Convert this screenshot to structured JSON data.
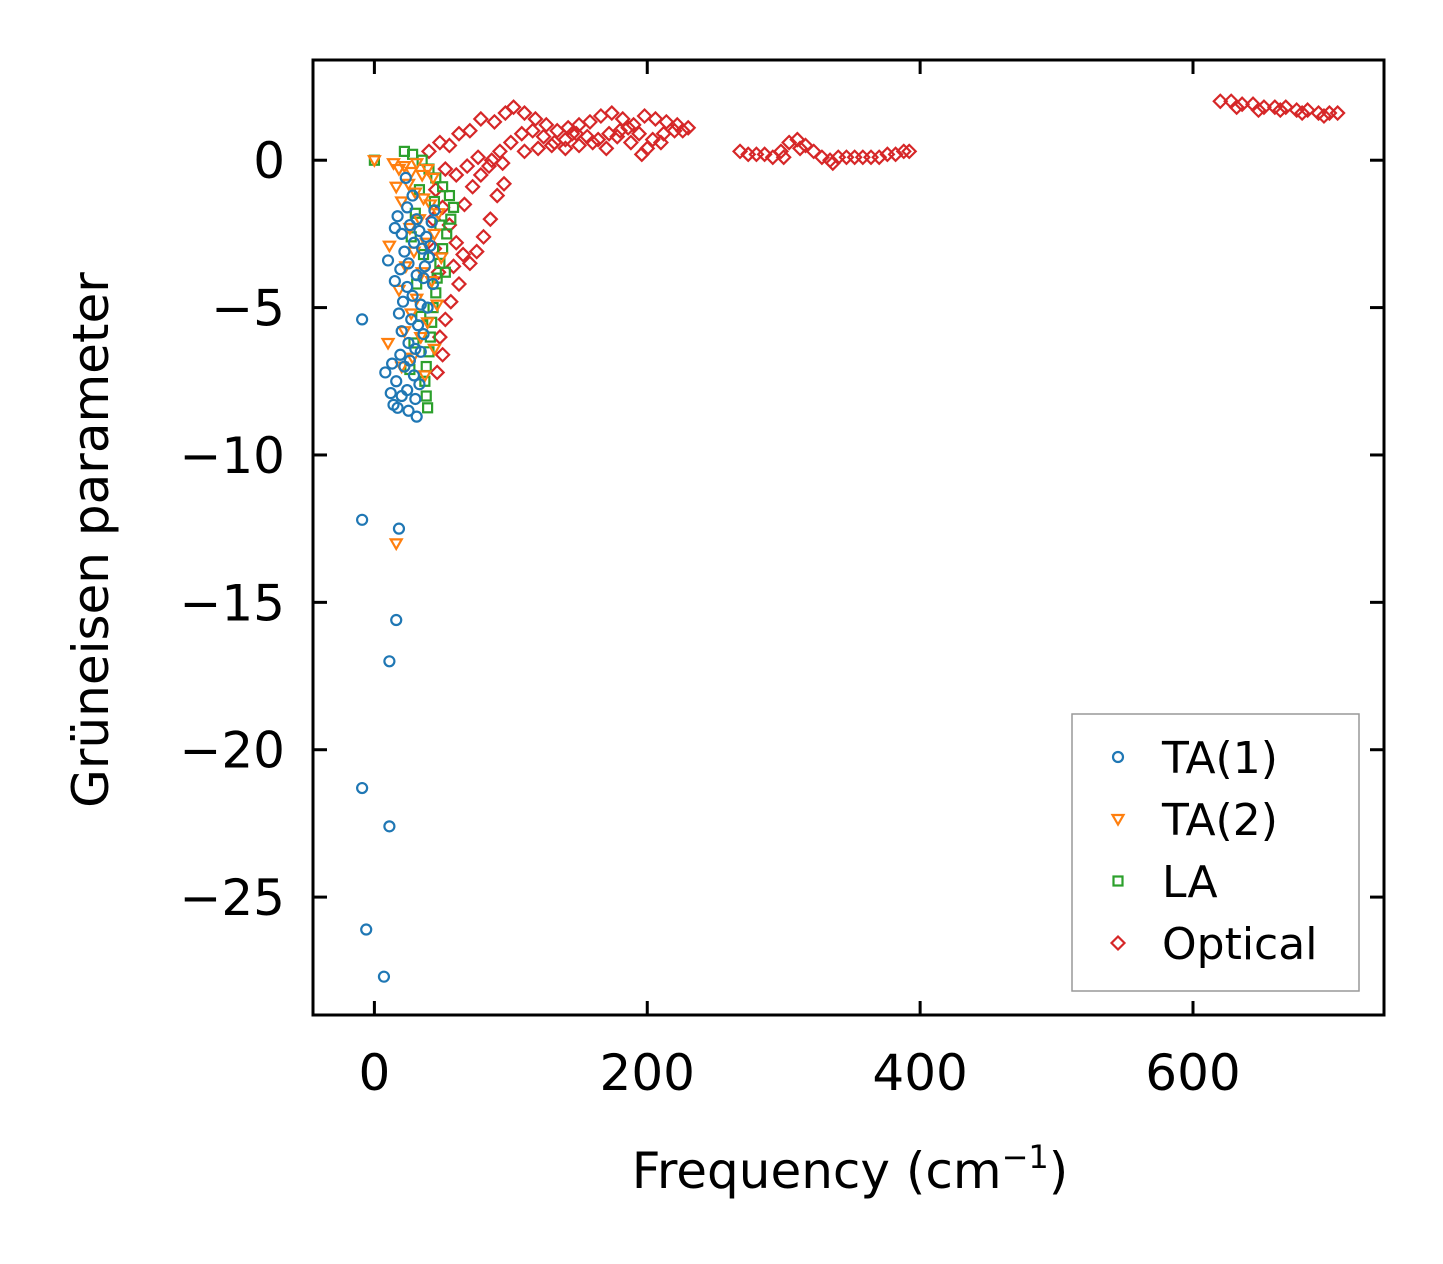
{
  "chart_data": {
    "type": "scatter",
    "title": "",
    "xlabel": "Frequency (cm",
    "xlabel_sup": "−1",
    "xlabel_end": ")",
    "ylabel": "Grüneisen parameter",
    "xlim": [
      -45,
      740
    ],
    "ylim": [
      -29.0,
      3.4
    ],
    "xticks": [
      0,
      200,
      400,
      600
    ],
    "xtick_labels": [
      "0",
      "200",
      "400",
      "600"
    ],
    "yticks": [
      0,
      -5,
      -10,
      -15,
      -20,
      -25
    ],
    "ytick_labels": [
      "0",
      "−5",
      "−10",
      "−15",
      "−20",
      "−25"
    ],
    "legend_position": "lower-right",
    "series": [
      {
        "name": "TA(1)",
        "marker": "circle",
        "color": "#1f77b4",
        "points": [
          [
            -9,
            -5.4
          ],
          [
            -9,
            -12.2
          ],
          [
            18,
            -12.5
          ],
          [
            16,
            -15.6
          ],
          [
            11,
            -17.0
          ],
          [
            -9,
            -21.3
          ],
          [
            11,
            -22.6
          ],
          [
            -6,
            -26.1
          ],
          [
            7,
            -27.7
          ],
          [
            23,
            -0.6
          ],
          [
            28,
            -1.2
          ],
          [
            24,
            -1.6
          ],
          [
            17,
            -1.9
          ],
          [
            31,
            -2.0
          ],
          [
            15,
            -2.3
          ],
          [
            20,
            -2.5
          ],
          [
            26,
            -2.2
          ],
          [
            33,
            -2.4
          ],
          [
            38,
            -2.6
          ],
          [
            42,
            -2.1
          ],
          [
            29,
            -2.8
          ],
          [
            35,
            -3.0
          ],
          [
            22,
            -3.1
          ],
          [
            40,
            -3.3
          ],
          [
            25,
            -3.5
          ],
          [
            10,
            -3.4
          ],
          [
            19,
            -3.7
          ],
          [
            31,
            -3.9
          ],
          [
            36,
            -4.0
          ],
          [
            15,
            -4.1
          ],
          [
            24,
            -4.3
          ],
          [
            43,
            -4.2
          ],
          [
            28,
            -4.6
          ],
          [
            21,
            -4.8
          ],
          [
            34,
            -4.9
          ],
          [
            39,
            -5.0
          ],
          [
            18,
            -5.2
          ],
          [
            27,
            -5.4
          ],
          [
            32,
            -5.6
          ],
          [
            20,
            -5.8
          ],
          [
            36,
            -5.9
          ],
          [
            25,
            -6.2
          ],
          [
            30,
            -6.4
          ],
          [
            19,
            -6.6
          ],
          [
            34,
            -6.5
          ],
          [
            26,
            -6.8
          ],
          [
            13,
            -6.9
          ],
          [
            8,
            -7.2
          ],
          [
            22,
            -7.0
          ],
          [
            29,
            -7.3
          ],
          [
            16,
            -7.5
          ],
          [
            33,
            -7.6
          ],
          [
            24,
            -7.8
          ],
          [
            12,
            -7.9
          ],
          [
            20,
            -8.0
          ],
          [
            30,
            -8.1
          ],
          [
            14,
            -8.3
          ],
          [
            17,
            -8.4
          ],
          [
            25,
            -8.5
          ],
          [
            31,
            -8.7
          ],
          [
            37,
            -3.6
          ],
          [
            41,
            -2.9
          ],
          [
            44,
            -1.7
          ]
        ]
      },
      {
        "name": "TA(2)",
        "marker": "triangle-down",
        "color": "#ff7f0e",
        "points": [
          [
            0,
            0.0
          ],
          [
            14,
            -0.1
          ],
          [
            18,
            -0.3
          ],
          [
            22,
            -0.2
          ],
          [
            27,
            -0.4
          ],
          [
            31,
            -0.1
          ],
          [
            35,
            -0.5
          ],
          [
            39,
            -0.3
          ],
          [
            43,
            -0.6
          ],
          [
            25,
            -0.8
          ],
          [
            16,
            -0.9
          ],
          [
            30,
            -1.1
          ],
          [
            36,
            -1.3
          ],
          [
            41,
            -1.5
          ],
          [
            20,
            -1.4
          ],
          [
            47,
            -1.8
          ],
          [
            33,
            -2.0
          ],
          [
            26,
            -2.3
          ],
          [
            44,
            -2.5
          ],
          [
            38,
            -2.8
          ],
          [
            11,
            -2.9
          ],
          [
            29,
            -3.1
          ],
          [
            49,
            -3.3
          ],
          [
            23,
            -3.6
          ],
          [
            35,
            -3.8
          ],
          [
            42,
            -4.1
          ],
          [
            18,
            -4.4
          ],
          [
            31,
            -4.7
          ],
          [
            46,
            -4.9
          ],
          [
            27,
            -5.2
          ],
          [
            39,
            -5.5
          ],
          [
            22,
            -5.8
          ],
          [
            34,
            -6.0
          ],
          [
            10,
            -6.2
          ],
          [
            44,
            -6.4
          ],
          [
            28,
            -6.7
          ],
          [
            20,
            -7.0
          ],
          [
            37,
            -7.3
          ],
          [
            16,
            -13.0
          ]
        ]
      },
      {
        "name": "LA",
        "marker": "square",
        "color": "#2ca02c",
        "points": [
          [
            0,
            0.0
          ],
          [
            22,
            0.3
          ],
          [
            28,
            0.2
          ],
          [
            35,
            0.0
          ],
          [
            40,
            -0.3
          ],
          [
            45,
            -0.6
          ],
          [
            50,
            -0.9
          ],
          [
            55,
            -1.2
          ],
          [
            58,
            -1.6
          ],
          [
            56,
            -2.0
          ],
          [
            53,
            -2.5
          ],
          [
            50,
            -3.0
          ],
          [
            48,
            -3.5
          ],
          [
            46,
            -4.0
          ],
          [
            45,
            -4.5
          ],
          [
            43,
            -5.0
          ],
          [
            42,
            -5.5
          ],
          [
            41,
            -6.0
          ],
          [
            40,
            -6.5
          ],
          [
            38,
            -7.0
          ],
          [
            37,
            -7.5
          ],
          [
            38,
            -8.0
          ],
          [
            39,
            -8.4
          ],
          [
            33,
            -1.0
          ],
          [
            30,
            -1.8
          ],
          [
            27,
            -2.6
          ],
          [
            36,
            -3.2
          ],
          [
            31,
            -4.2
          ],
          [
            34,
            -5.3
          ],
          [
            29,
            -6.2
          ],
          [
            26,
            -7.1
          ],
          [
            48,
            -2.2
          ],
          [
            52,
            -3.8
          ],
          [
            44,
            -1.4
          ]
        ]
      },
      {
        "name": "Optical",
        "marker": "diamond",
        "color": "#d62728",
        "points": [
          [
            40,
            0.3
          ],
          [
            48,
            0.6
          ],
          [
            55,
            0.5
          ],
          [
            62,
            0.9
          ],
          [
            70,
            1.0
          ],
          [
            78,
            1.4
          ],
          [
            88,
            1.3
          ],
          [
            96,
            1.6
          ],
          [
            102,
            1.8
          ],
          [
            110,
            1.6
          ],
          [
            118,
            1.4
          ],
          [
            126,
            1.2
          ],
          [
            134,
            1.0
          ],
          [
            142,
            1.1
          ],
          [
            150,
            1.2
          ],
          [
            158,
            1.3
          ],
          [
            166,
            1.5
          ],
          [
            174,
            1.6
          ],
          [
            182,
            1.4
          ],
          [
            190,
            1.2
          ],
          [
            198,
            1.5
          ],
          [
            206,
            1.4
          ],
          [
            214,
            1.3
          ],
          [
            222,
            1.2
          ],
          [
            230,
            1.1
          ],
          [
            52,
            -0.3
          ],
          [
            60,
            -0.5
          ],
          [
            68,
            -0.2
          ],
          [
            76,
            0.1
          ],
          [
            84,
            -0.2
          ],
          [
            92,
            0.3
          ],
          [
            100,
            0.6
          ],
          [
            108,
            0.9
          ],
          [
            116,
            1.0
          ],
          [
            124,
            0.8
          ],
          [
            132,
            0.6
          ],
          [
            140,
            0.7
          ],
          [
            148,
            0.9
          ],
          [
            156,
            0.8
          ],
          [
            164,
            0.7
          ],
          [
            172,
            0.9
          ],
          [
            180,
            1.0
          ],
          [
            188,
            0.6
          ],
          [
            196,
            0.2
          ],
          [
            204,
            0.7
          ],
          [
            212,
            0.9
          ],
          [
            220,
            1.0
          ],
          [
            45,
            -1.0
          ],
          [
            50,
            -1.6
          ],
          [
            55,
            -2.2
          ],
          [
            60,
            -2.8
          ],
          [
            65,
            -3.2
          ],
          [
            70,
            -3.5
          ],
          [
            75,
            -3.1
          ],
          [
            80,
            -2.6
          ],
          [
            85,
            -2.0
          ],
          [
            90,
            -1.2
          ],
          [
            95,
            -0.8
          ],
          [
            58,
            -3.6
          ],
          [
            62,
            -4.2
          ],
          [
            56,
            -4.8
          ],
          [
            52,
            -5.4
          ],
          [
            48,
            -6.0
          ],
          [
            50,
            -6.6
          ],
          [
            46,
            -7.2
          ],
          [
            44,
            -3.0
          ],
          [
            47,
            -3.8
          ],
          [
            43,
            -2.0
          ],
          [
            66,
            -1.5
          ],
          [
            72,
            -0.9
          ],
          [
            78,
            -0.5
          ],
          [
            86,
            0.0
          ],
          [
            94,
            -0.1
          ],
          [
            110,
            0.3
          ],
          [
            120,
            0.4
          ],
          [
            130,
            0.5
          ],
          [
            140,
            0.4
          ],
          [
            145,
            0.9
          ],
          [
            150,
            0.5
          ],
          [
            160,
            0.6
          ],
          [
            170,
            0.4
          ],
          [
            178,
            0.8
          ],
          [
            186,
            1.1
          ],
          [
            194,
            0.9
          ],
          [
            200,
            0.4
          ],
          [
            210,
            0.6
          ],
          [
            226,
            1.0
          ],
          [
            268,
            0.3
          ],
          [
            274,
            0.2
          ],
          [
            280,
            0.2
          ],
          [
            286,
            0.2
          ],
          [
            292,
            0.1
          ],
          [
            298,
            0.3
          ],
          [
            304,
            0.6
          ],
          [
            310,
            0.7
          ],
          [
            316,
            0.5
          ],
          [
            322,
            0.3
          ],
          [
            328,
            0.1
          ],
          [
            334,
            0.0
          ],
          [
            340,
            0.1
          ],
          [
            346,
            0.1
          ],
          [
            352,
            0.1
          ],
          [
            358,
            0.1
          ],
          [
            364,
            0.1
          ],
          [
            370,
            0.1
          ],
          [
            376,
            0.2
          ],
          [
            382,
            0.2
          ],
          [
            388,
            0.3
          ],
          [
            392,
            0.3
          ],
          [
            300,
            0.1
          ],
          [
            312,
            0.4
          ],
          [
            336,
            -0.1
          ],
          [
            620,
            2.0
          ],
          [
            628,
            2.0
          ],
          [
            636,
            1.9
          ],
          [
            644,
            1.9
          ],
          [
            652,
            1.8
          ],
          [
            660,
            1.8
          ],
          [
            668,
            1.8
          ],
          [
            676,
            1.7
          ],
          [
            684,
            1.7
          ],
          [
            692,
            1.6
          ],
          [
            700,
            1.6
          ],
          [
            706,
            1.6
          ],
          [
            632,
            1.8
          ],
          [
            648,
            1.7
          ],
          [
            664,
            1.7
          ],
          [
            680,
            1.6
          ],
          [
            696,
            1.5
          ]
        ]
      }
    ]
  }
}
